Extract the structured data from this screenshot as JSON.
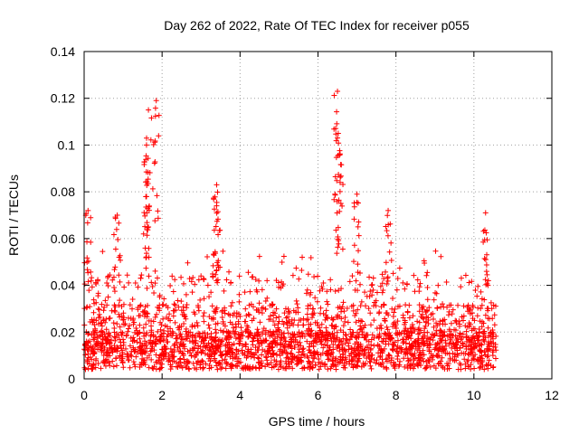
{
  "chart_data": {
    "type": "scatter",
    "title": "Day 262 of 2022, Rate Of TEC Index for receiver p055",
    "xlabel": "GPS time / hours",
    "ylabel": "ROTI / TECUs",
    "xlim": [
      0,
      12
    ],
    "ylim": [
      0,
      0.14
    ],
    "grid": true,
    "marker": "+",
    "marker_color": "#ff0000",
    "x_ticks": [
      {
        "value": 0,
        "label": "0"
      },
      {
        "value": 2,
        "label": "2"
      },
      {
        "value": 4,
        "label": "4"
      },
      {
        "value": 6,
        "label": "6"
      },
      {
        "value": 8,
        "label": "8"
      },
      {
        "value": 10,
        "label": "10"
      },
      {
        "value": 12,
        "label": "12"
      }
    ],
    "y_ticks": [
      {
        "value": 0,
        "label": "0"
      },
      {
        "value": 0.02,
        "label": "0.02"
      },
      {
        "value": 0.04,
        "label": "0.04"
      },
      {
        "value": 0.06,
        "label": "0.06"
      },
      {
        "value": 0.08,
        "label": "0.08"
      },
      {
        "value": 0.1,
        "label": "0.1"
      },
      {
        "value": 0.12,
        "label": "0.12"
      },
      {
        "value": 0.14,
        "label": "0.14"
      }
    ],
    "series": [
      {
        "name": "ROTI",
        "x_range": [
          0,
          10.6
        ],
        "base_level": 0.012,
        "typical_upper": 0.045,
        "peaks": [
          {
            "x": 0.1,
            "y": 0.072
          },
          {
            "x": 0.85,
            "y": 0.07
          },
          {
            "x": 1.65,
            "y": 0.115
          },
          {
            "x": 1.85,
            "y": 0.119
          },
          {
            "x": 1.6,
            "y": 0.1
          },
          {
            "x": 1.6,
            "y": 0.078
          },
          {
            "x": 3.4,
            "y": 0.083
          },
          {
            "x": 3.4,
            "y": 0.074
          },
          {
            "x": 6.5,
            "y": 0.123
          },
          {
            "x": 6.5,
            "y": 0.103
          },
          {
            "x": 6.55,
            "y": 0.096
          },
          {
            "x": 7.0,
            "y": 0.079
          },
          {
            "x": 7.8,
            "y": 0.072
          },
          {
            "x": 10.3,
            "y": 0.071
          }
        ]
      }
    ]
  }
}
